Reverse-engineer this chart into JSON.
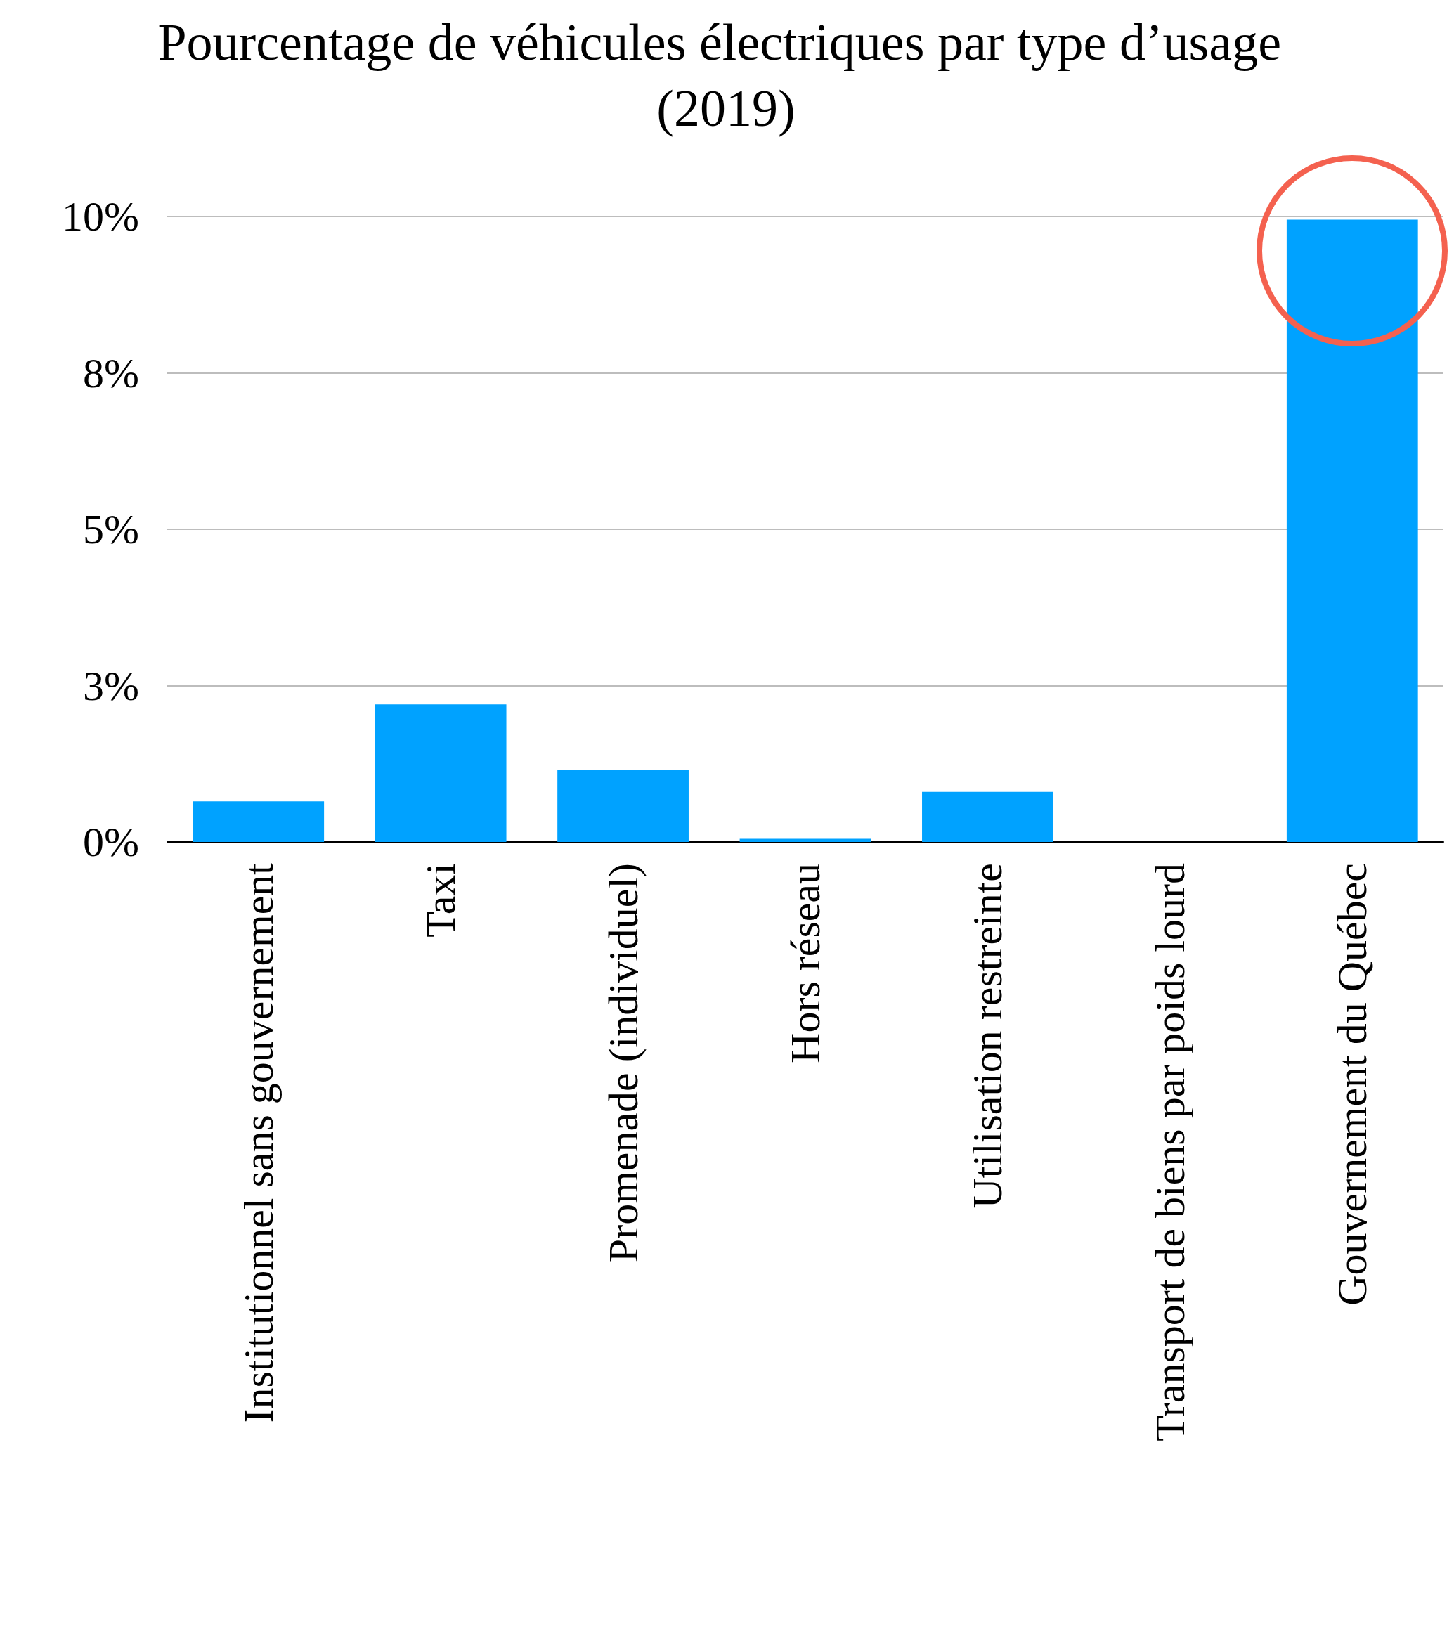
{
  "chart_data": {
    "type": "bar",
    "title": "Pourcentage de véhicules électriques par type d’usage (2019)",
    "categories": [
      "Institutionnel sans gouvernement",
      "Taxi",
      "Promenade (individuel)",
      "Hors réseau",
      "Utilisation restreinte",
      "Transport de biens par poids lourd",
      "Gouvernement du Québec"
    ],
    "values": [
      0.65,
      2.2,
      1.15,
      0.05,
      0.8,
      0,
      9.95
    ],
    "color": "#00a2ff",
    "ylim": [
      0,
      10
    ],
    "yticks": [
      {
        "value": 0,
        "label": "0%"
      },
      {
        "value": 2.5,
        "label": "3%"
      },
      {
        "value": 5,
        "label": "5%"
      },
      {
        "value": 7.5,
        "label": "8%"
      },
      {
        "value": 10,
        "label": "10%"
      }
    ],
    "grid": "y"
  }
}
